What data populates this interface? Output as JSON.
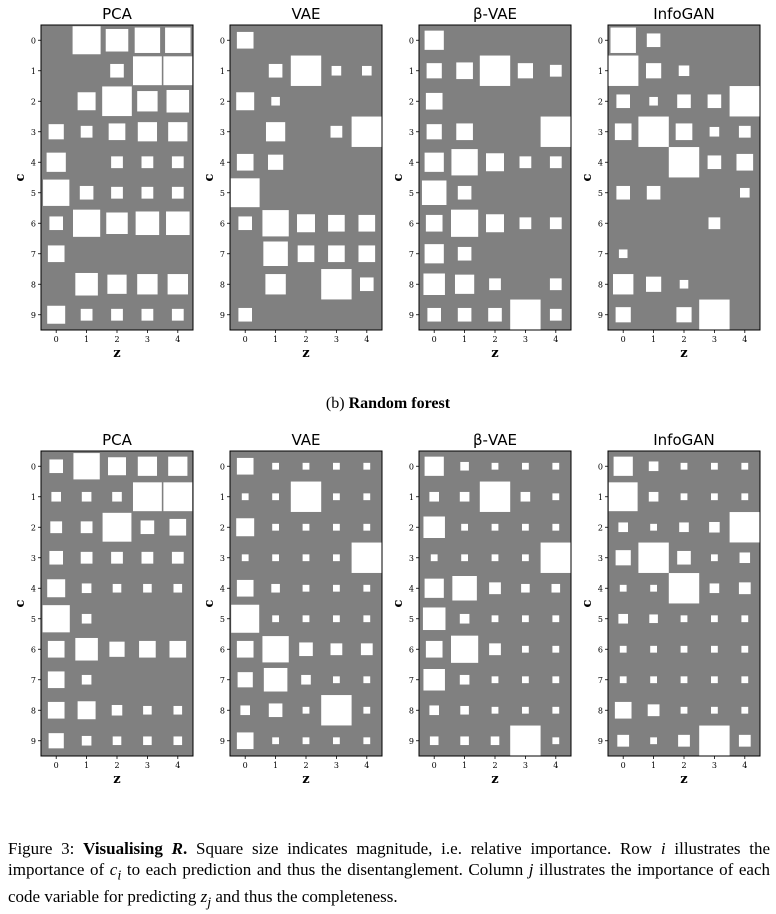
{
  "colors": {
    "background": "#808080",
    "square": "#ffffff"
  },
  "subcaption": {
    "prefix": "(b)",
    "label": "Random forest"
  },
  "caption": {
    "figure_label": "Figure 3:",
    "bold_title": "Visualising",
    "bold_symbol": "R",
    "bold_end": ".",
    "s1": "Square size indicates magnitude, i.e. relative importance. Row",
    "row_var": "i",
    "s2": "illustrates the importance of",
    "c_var": "c",
    "c_sub": "i",
    "s3": "to each prediction and thus the disentanglement. Column",
    "col_var": "j",
    "s4": "illustrates the importance of each code variable for predicting",
    "z_var": "z",
    "z_sub": "j",
    "s5": "and thus the completeness."
  },
  "chart_data": [
    {
      "type": "heatmap",
      "title": "PCA",
      "xlabel": "z",
      "ylabel": "c",
      "x": [
        0,
        1,
        2,
        3,
        4
      ],
      "y": [
        0,
        1,
        2,
        3,
        4,
        5,
        6,
        7,
        8,
        9
      ],
      "values": [
        [
          0.0,
          0.85,
          0.55,
          0.7,
          0.7
        ],
        [
          0.0,
          0.0,
          0.2,
          0.9,
          0.9
        ],
        [
          0.0,
          0.35,
          0.95,
          0.45,
          0.55
        ],
        [
          0.25,
          0.15,
          0.3,
          0.4,
          0.4
        ],
        [
          0.4,
          0.0,
          0.15,
          0.15,
          0.15
        ],
        [
          0.75,
          0.2,
          0.15,
          0.15,
          0.15
        ],
        [
          0.2,
          0.8,
          0.5,
          0.6,
          0.6
        ],
        [
          0.3,
          0.0,
          0.0,
          0.0,
          0.0
        ],
        [
          0.0,
          0.55,
          0.4,
          0.45,
          0.45
        ],
        [
          0.35,
          0.15,
          0.15,
          0.15,
          0.15
        ]
      ]
    },
    {
      "type": "heatmap",
      "title": "VAE",
      "xlabel": "z",
      "ylabel": "c",
      "x": [
        0,
        1,
        2,
        3,
        4
      ],
      "y": [
        0,
        1,
        2,
        3,
        4,
        5,
        6,
        7,
        8,
        9
      ],
      "values": [
        [
          0.3,
          0.0,
          0.0,
          0.0,
          0.0
        ],
        [
          0.0,
          0.2,
          1.0,
          0.1,
          0.1
        ],
        [
          0.35,
          0.08,
          0.0,
          0.0,
          0.0
        ],
        [
          0.0,
          0.4,
          0.0,
          0.15,
          1.0
        ],
        [
          0.3,
          0.25,
          0.0,
          0.0,
          0.0
        ],
        [
          0.9,
          0.0,
          0.0,
          0.0,
          0.0
        ],
        [
          0.2,
          0.75,
          0.35,
          0.3,
          0.3
        ],
        [
          0.0,
          0.65,
          0.3,
          0.3,
          0.3
        ],
        [
          0.0,
          0.45,
          0.0,
          1.0,
          0.2
        ],
        [
          0.2,
          0.0,
          0.0,
          0.0,
          0.0
        ]
      ]
    },
    {
      "type": "heatmap",
      "title": "β-VAE",
      "xlabel": "z",
      "ylabel": "c",
      "x": [
        0,
        1,
        2,
        3,
        4
      ],
      "y": [
        0,
        1,
        2,
        3,
        4,
        5,
        6,
        7,
        8,
        9
      ],
      "values": [
        [
          0.4,
          0.0,
          0.0,
          0.0,
          0.0
        ],
        [
          0.25,
          0.3,
          1.0,
          0.25,
          0.15
        ],
        [
          0.3,
          0.0,
          0.0,
          0.0,
          0.0
        ],
        [
          0.25,
          0.3,
          0.0,
          0.0,
          1.0
        ],
        [
          0.4,
          0.75,
          0.35,
          0.15,
          0.15
        ],
        [
          0.65,
          0.2,
          0.0,
          0.0,
          0.0
        ],
        [
          0.3,
          0.8,
          0.35,
          0.15,
          0.15
        ],
        [
          0.4,
          0.2,
          0.0,
          0.0,
          0.0
        ],
        [
          0.5,
          0.4,
          0.15,
          0.0,
          0.15
        ],
        [
          0.2,
          0.2,
          0.2,
          1.0,
          0.15
        ]
      ]
    },
    {
      "type": "heatmap",
      "title": "InfoGAN",
      "xlabel": "z",
      "ylabel": "c",
      "x": [
        0,
        1,
        2,
        3,
        4
      ],
      "y": [
        0,
        1,
        2,
        3,
        4,
        5,
        6,
        7,
        8,
        9
      ],
      "values": [
        [
          0.7,
          0.2,
          0.0,
          0.0,
          0.0
        ],
        [
          1.0,
          0.25,
          0.12,
          0.0,
          0.0
        ],
        [
          0.2,
          0.08,
          0.2,
          0.2,
          1.0
        ],
        [
          0.3,
          1.0,
          0.3,
          0.1,
          0.15
        ],
        [
          0.0,
          0.0,
          1.0,
          0.2,
          0.3
        ],
        [
          0.2,
          0.2,
          0.0,
          0.0,
          0.1
        ],
        [
          0.0,
          0.0,
          0.0,
          0.15,
          0.0
        ],
        [
          0.08,
          0.0,
          0.0,
          0.0,
          0.0
        ],
        [
          0.45,
          0.25,
          0.08,
          0.0,
          0.0
        ],
        [
          0.25,
          0.0,
          0.25,
          1.0,
          0.0
        ]
      ]
    },
    {
      "type": "heatmap",
      "title": "PCA",
      "xlabel": "z",
      "ylabel": "c",
      "x": [
        0,
        1,
        2,
        3,
        4
      ],
      "y": [
        0,
        1,
        2,
        3,
        4,
        5,
        6,
        7,
        8,
        9
      ],
      "values": [
        [
          0.2,
          0.75,
          0.35,
          0.4,
          0.4
        ],
        [
          0.1,
          0.1,
          0.1,
          0.9,
          0.9
        ],
        [
          0.15,
          0.15,
          0.9,
          0.2,
          0.3
        ],
        [
          0.2,
          0.15,
          0.15,
          0.15,
          0.15
        ],
        [
          0.35,
          0.1,
          0.08,
          0.08,
          0.08
        ],
        [
          0.8,
          0.1,
          0.0,
          0.0,
          0.0
        ],
        [
          0.3,
          0.55,
          0.25,
          0.3,
          0.3
        ],
        [
          0.3,
          0.1,
          0.0,
          0.0,
          0.0
        ],
        [
          0.3,
          0.35,
          0.12,
          0.08,
          0.08
        ],
        [
          0.25,
          0.1,
          0.08,
          0.08,
          0.08
        ]
      ]
    },
    {
      "type": "heatmap",
      "title": "VAE",
      "xlabel": "z",
      "ylabel": "c",
      "x": [
        0,
        1,
        2,
        3,
        4
      ],
      "y": [
        0,
        1,
        2,
        3,
        4,
        5,
        6,
        7,
        8,
        9
      ],
      "values": [
        [
          0.3,
          0.05,
          0.05,
          0.05,
          0.05
        ],
        [
          0.05,
          0.05,
          1.0,
          0.05,
          0.05
        ],
        [
          0.35,
          0.05,
          0.05,
          0.05,
          0.05
        ],
        [
          0.05,
          0.05,
          0.05,
          0.05,
          1.0
        ],
        [
          0.3,
          0.08,
          0.05,
          0.05,
          0.05
        ],
        [
          0.85,
          0.05,
          0.05,
          0.05,
          0.05
        ],
        [
          0.3,
          0.75,
          0.2,
          0.15,
          0.15
        ],
        [
          0.25,
          0.6,
          0.1,
          0.05,
          0.05
        ],
        [
          0.1,
          0.2,
          0.05,
          1.0,
          0.05
        ],
        [
          0.3,
          0.05,
          0.05,
          0.05,
          0.05
        ]
      ]
    },
    {
      "type": "heatmap",
      "title": "β-VAE",
      "xlabel": "z",
      "ylabel": "c",
      "x": [
        0,
        1,
        2,
        3,
        4
      ],
      "y": [
        0,
        1,
        2,
        3,
        4,
        5,
        6,
        7,
        8,
        9
      ],
      "values": [
        [
          0.4,
          0.08,
          0.05,
          0.05,
          0.05
        ],
        [
          0.1,
          0.1,
          1.0,
          0.1,
          0.05
        ],
        [
          0.5,
          0.05,
          0.05,
          0.05,
          0.05
        ],
        [
          0.05,
          0.05,
          0.05,
          0.05,
          1.0
        ],
        [
          0.4,
          0.65,
          0.15,
          0.08,
          0.08
        ],
        [
          0.55,
          0.1,
          0.05,
          0.05,
          0.05
        ],
        [
          0.3,
          0.8,
          0.15,
          0.05,
          0.05
        ],
        [
          0.5,
          0.1,
          0.05,
          0.05,
          0.05
        ],
        [
          0.1,
          0.08,
          0.05,
          0.05,
          0.05
        ],
        [
          0.08,
          0.08,
          0.08,
          1.0,
          0.05
        ]
      ]
    },
    {
      "type": "heatmap",
      "title": "InfoGAN",
      "xlabel": "z",
      "ylabel": "c",
      "x": [
        0,
        1,
        2,
        3,
        4
      ],
      "y": [
        0,
        1,
        2,
        3,
        4,
        5,
        6,
        7,
        8,
        9
      ],
      "values": [
        [
          0.4,
          0.1,
          0.05,
          0.05,
          0.05
        ],
        [
          0.9,
          0.1,
          0.05,
          0.05,
          0.05
        ],
        [
          0.1,
          0.05,
          0.1,
          0.12,
          1.0
        ],
        [
          0.25,
          1.0,
          0.2,
          0.05,
          0.12
        ],
        [
          0.05,
          0.05,
          1.0,
          0.1,
          0.15
        ],
        [
          0.1,
          0.08,
          0.05,
          0.05,
          0.05
        ],
        [
          0.05,
          0.05,
          0.05,
          0.05,
          0.05
        ],
        [
          0.05,
          0.05,
          0.05,
          0.05,
          0.05
        ],
        [
          0.3,
          0.15,
          0.05,
          0.05,
          0.05
        ],
        [
          0.15,
          0.05,
          0.15,
          1.0,
          0.15
        ]
      ]
    }
  ]
}
